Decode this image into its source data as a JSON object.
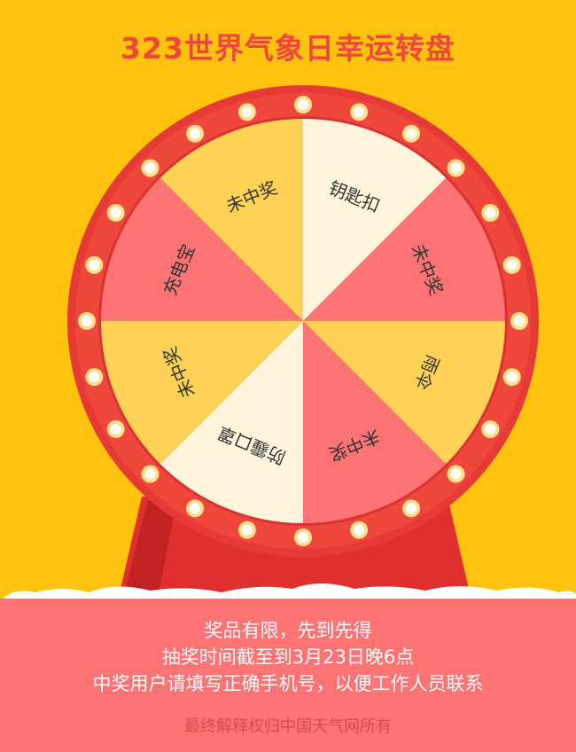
{
  "header": {
    "title": "323世界气象日幸运转盘"
  },
  "wheel": {
    "prizes": [
      "钥匙扣",
      "未中奖",
      "雨伞",
      "未中奖",
      "防霾口罩",
      "未中奖",
      "充电宝",
      "未中奖"
    ],
    "slice_colors": [
      "#FFF4DC",
      "#FE7474",
      "#FFD154",
      "#FE7474",
      "#FFF4DC",
      "#FFD154",
      "#FE7474",
      "#FFD154"
    ]
  },
  "footer": {
    "line1": "奖品有限，先到先得",
    "line2": "抽奖时间截至到3月23日晚6点",
    "line3": "中奖用户请填写正确手机号，以便工作人员联系",
    "copyright": "最终解释权归中国天气网所有"
  },
  "colors": {
    "background": "#FFC20E",
    "rim": "#F0473D",
    "panel": "#FE7474",
    "title": "#F0473D"
  }
}
